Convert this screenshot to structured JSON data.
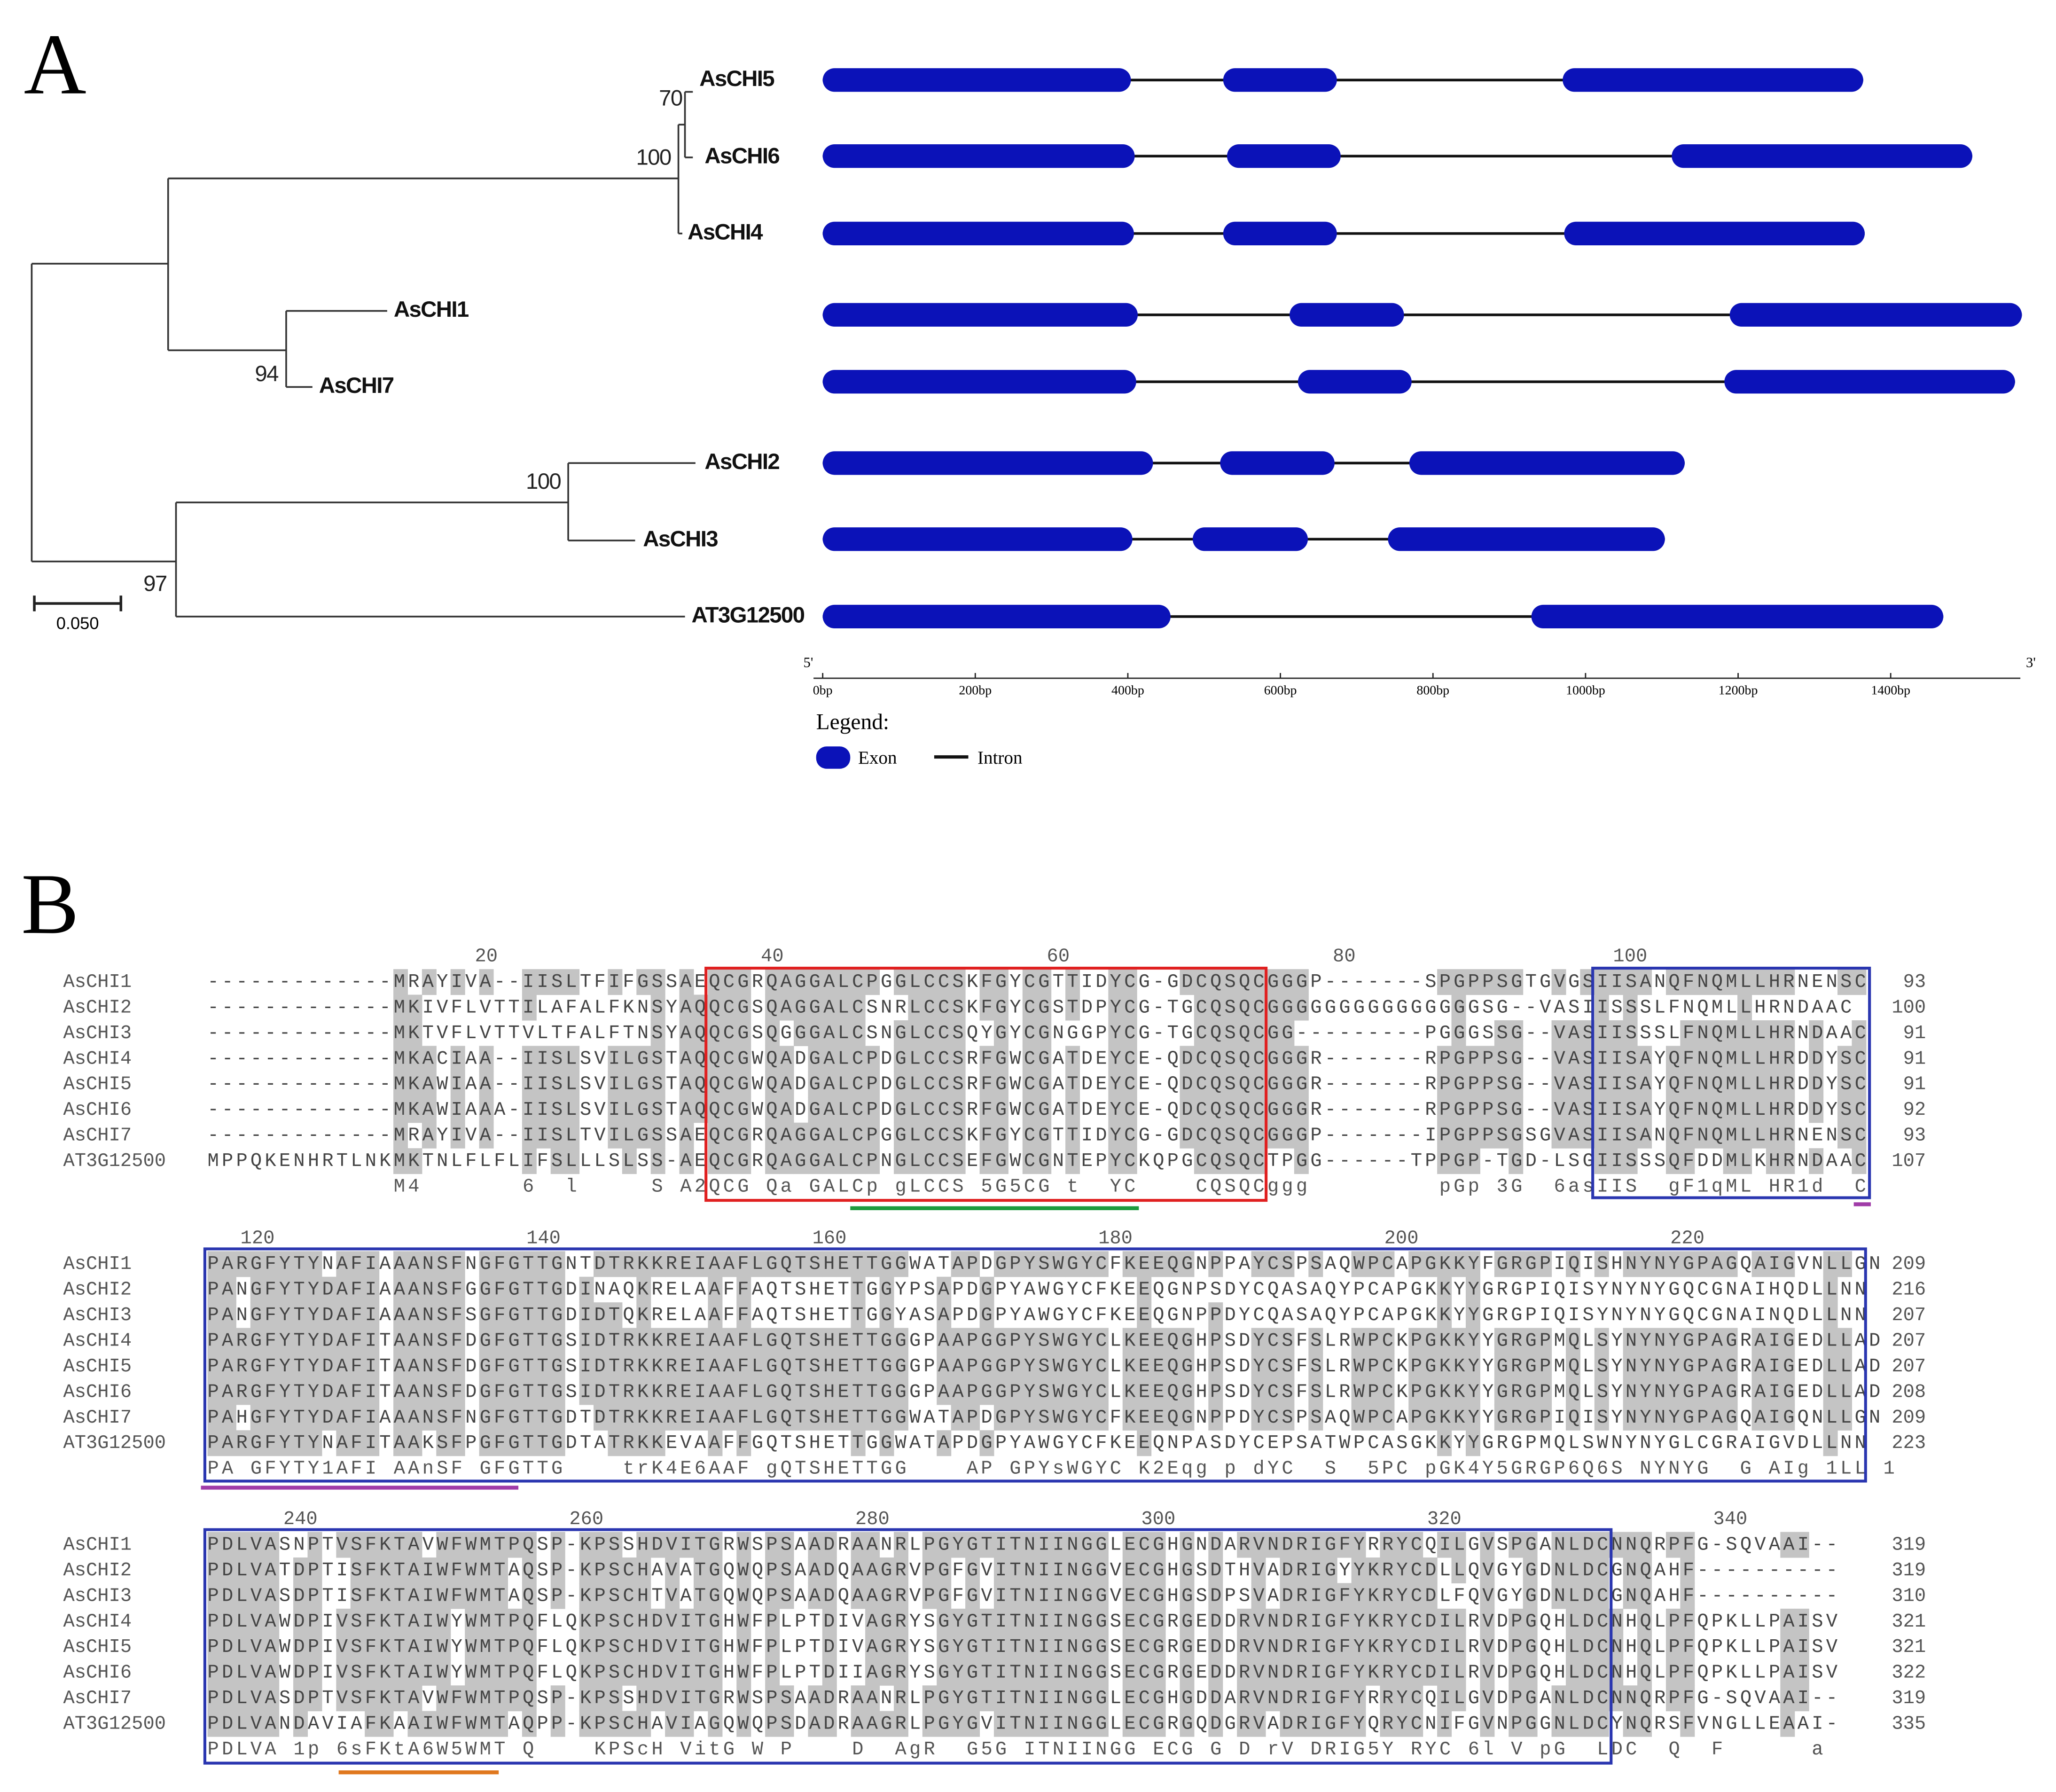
{
  "panelA": {
    "label": "A",
    "tree": {
      "leaves": [
        "AsCHI5",
        "AsCHI6",
        "AsCHI4",
        "AsCHI1",
        "AsCHI7",
        "AsCHI2",
        "AsCHI3",
        "AT3G12500"
      ],
      "bootstrap": [
        70,
        100,
        94,
        100,
        97
      ],
      "scale": "0.050"
    },
    "genes": {
      "type": "gene-structure",
      "color": "#0b12b8",
      "xlim": [
        0,
        1570
      ],
      "xticks": [
        {
          "value": 0,
          "label": "0bp"
        },
        {
          "value": 200,
          "label": "200bp"
        },
        {
          "value": 400,
          "label": "400bp"
        },
        {
          "value": 600,
          "label": "600bp"
        },
        {
          "value": 800,
          "label": "800bp"
        },
        {
          "value": 1000,
          "label": "1000bp"
        },
        {
          "value": 1200,
          "label": "1200bp"
        },
        {
          "value": 1400,
          "label": "1400bp"
        }
      ],
      "end5": "5'",
      "end3": "3'",
      "exons": [
        [
          [
            0,
            404
          ],
          [
            525,
            674
          ],
          [
            970,
            1364
          ]
        ],
        [
          [
            0,
            409
          ],
          [
            530,
            679
          ],
          [
            1113,
            1507
          ]
        ],
        [
          [
            0,
            408
          ],
          [
            525,
            674
          ],
          [
            972,
            1366
          ]
        ],
        [
          [
            0,
            413
          ],
          [
            612,
            762
          ],
          [
            1189,
            1572
          ]
        ],
        [
          [
            0,
            411
          ],
          [
            623,
            772
          ],
          [
            1182,
            1563
          ]
        ],
        [
          [
            0,
            433
          ],
          [
            521,
            671
          ],
          [
            769,
            1130
          ]
        ],
        [
          [
            0,
            406
          ],
          [
            485,
            636
          ],
          [
            741,
            1104
          ]
        ],
        [
          [
            0,
            456
          ],
          [
            929,
            1469
          ]
        ]
      ]
    },
    "legend": {
      "title": "Legend:",
      "exon": "Exon",
      "intron": "Intron"
    }
  },
  "panelB": {
    "label": "B",
    "blocks": [
      {
        "positions": [
          20,
          40,
          60,
          80,
          100
        ],
        "rows": [
          {
            "name": "AsCHI1",
            "seq": "-------------MRAYIVA--IISLTFIFGSSAEQCGRQAGGALCPGGLCCSKFGYCGTTIDYCG-GDCQSQCGGGP-------SPGPPSGTGVGSIISANQFNQMLLHRNENSC",
            "end": 93
          },
          {
            "name": "AsCHI2",
            "seq": "-------------MKIVFLVTTILAFALFKNSYAQQCGSQAGGALCSNRLCCSKFGYCGSTDPYCG-TGCQSQCGGGGGGGGGGGGGGGSG--VASIISSSLFNQMLLHRNDAAC",
            "end": 100
          },
          {
            "name": "AsCHI3",
            "seq": "-------------MKTVFLVTTVLTFALFTNSYAQQCGSQGGGALCSNGLCCSQYGYCGNGGPYCG-TGCQSQCGG---------PGGGSSG--VASIISSSLFNQMLLHRNDAAC",
            "end": 91
          },
          {
            "name": "AsCHI4",
            "seq": "-------------MKACIAA--IISLSVILGSTAQQCGWQADGALCPDGLCCSRFGWCGATDEYCE-QDCQSQCGGGR-------RPGPPSG--VASIISAYQFNQMLLHRDDYSC",
            "end": 91
          },
          {
            "name": "AsCHI5",
            "seq": "-------------MKAWIAA--IISLSVILGSTAQQCGWQADGALCPDGLCCSRFGWCGATDEYCE-QDCQSQCGGGR-------RPGPPSG--VASIISAYQFNQMLLHRDDYSC",
            "end": 91
          },
          {
            "name": "AsCHI6",
            "seq": "-------------MKAWIAAA-IISLSVILGSTAQQCGWQADGALCPDGLCCSRFGWCGATDEYCE-QDCQSQCGGGR-------RPGPPSG--VASIISAYQFNQMLLHRDDYSC",
            "end": 92
          },
          {
            "name": "AsCHI7",
            "seq": "-------------MRAYIVA--IISLTVILGSSAEQCGRQAGGALCPGGLCCSKFGYCGTTIDYCG-GDCQSQCGGGP-------IPGPPSGSGVASIISANQFNQMLLHRNENSC",
            "end": 93
          },
          {
            "name": "AT3G12500",
            "seq": "MPPQKENHRTLNKMKTNLFLFLIFSLLLSLSS-AEQCGRQAGGALCPNGLCCSEFGWCGNTEPYCKQPGCQSQCTPGG------TPPGP-TGD-LSGIISSSQFDDMLKHRNDAAC",
            "end": 107
          }
        ],
        "consensus": "             M4       6  l     S A2QCG Qa GALCp gLCCS 5G5CG t  YC    CQSQCggg         pGp 3G  6asIIS  gF1qML HR1d  C"
      },
      {
        "positions": [
          120,
          140,
          160,
          180,
          200,
          220
        ],
        "rows": [
          {
            "name": "AsCHI1",
            "seq": "PARGFYTYNAFIAAANSFNGFGTTGNTDTRKKREIAAFLGQTSHETTGGWATAPDGPYSWGYCFKEEQGNPPAYCSPSAQWPCAPGKKYFGRGPIQISHNYNYGPAGQAIGVNLLGN",
            "end": 209
          },
          {
            "name": "AsCHI2",
            "seq": "PANGFYTYDAFIAAANSFGGFGTTGDINAQKRELAAFFAQTSHETTGGYPSAPDGPYAWGYCFKEEQGNPSDYCQASAQYPCAPGKKYYGRGPIQISYNYNYGQCGNAIHQDLLNN",
            "end": 216
          },
          {
            "name": "AsCHI3",
            "seq": "PANGFYTYDAFIAAANSFSGFGTTGDIDTQKRELAAFFAQTSHETTGGYASAPDGPYAWGYCFKEEQGNPPDYCQASAQYPCAPGKKYYGRGPIQISYNYNYGQCGNAINQDLLNN",
            "end": 207
          },
          {
            "name": "AsCHI4",
            "seq": "PARGFYTYDAFITAANSFDGFGTTGSIDTRKKREIAAFLGQTSHETTGGGPAAPGGPYSWGYCLKEEQGHPSDYCSFSLRWPCKPGKKYYGRGPMQLSYNYNYGPAGRAIGEDLLAD",
            "end": 207
          },
          {
            "name": "AsCHI5",
            "seq": "PARGFYTYDAFITAANSFDGFGTTGSIDTRKKREIAAFLGQTSHETTGGGPAAPGGPYSWGYCLKEEQGHPSDYCSFSLRWPCKPGKKYYGRGPMQLSYNYNYGPAGRAIGEDLLAD",
            "end": 207
          },
          {
            "name": "AsCHI6",
            "seq": "PARGFYTYDAFITAANSFDGFGTTGSIDTRKKREIAAFLGQTSHETTGGGPAAPGGPYSWGYCLKEEQGHPSDYCSFSLRWPCKPGKKYYGRGPMQLSYNYNYGPAGRAIGEDLLAD",
            "end": 208
          },
          {
            "name": "AsCHI7",
            "seq": "PAHGFYTYDAFIAAANSFNGFGTTGDTDTRKKREIAAFLGQTSHETTGGWATAPDGPYSWGYCFKEEQGNPPDYCSPSAQWPCAPGKKYYGRGPIQISYNYNYGPAGQAIGQNLLGN",
            "end": 209
          },
          {
            "name": "AT3G12500",
            "seq": "PARGFYTYNAFITAAKSFPGFGTTGDTATRKKEVAAFFGQTSHETTGGWATAPDGPYAWGYCFKEEQNPASDYCEPSATWPCASGKKYYGRGPMQLSWNYNYGLCGRAIGVDLLNN",
            "end": 223
          }
        ],
        "consensus": "PA GFYTY1AFI AAnSF GFGTTG    trK4E6AAF gQTSHETTGG    AP GPYsWGYC K2Eqg p dYC  S  5PC pGK4Y5GRGP6Q6S NYNYG  G AIg 1LL 1"
      },
      {
        "positions": [
          240,
          260,
          280,
          300,
          320,
          340
        ],
        "rows": [
          {
            "name": "AsCHI1",
            "seq": "PDLVASNPTVSFKTAVWFWMTPQSP-KPSSHDVITGRWSPSAADRAANRLPGYGTITNIINGGLECGHGNDARVNDRIGFYRRYCQILGVSPGANLDCNNQRPFG-SQVAAI--",
            "end": 319
          },
          {
            "name": "AsCHI2",
            "seq": "PDLVATDPTISFKTAIWFWMTAQSP-KPSCHAVATGQWQPSAADQAAGRVPGFGVITNIINGGVECGHGSDTHVADRIGYYKRYCDLLQVGYGDNLDCGNQAHF----------",
            "end": 319
          },
          {
            "name": "AsCHI3",
            "seq": "PDLVASDPTISFKTAIWFWMTAQSP-KPSCHTVATGQWQPSAADQAAGRVPGFGVITNIINGGVECGHGSDPSVADRIGFYKRYCDLFQVGYGDNLDCGNQAHF----------",
            "end": 310
          },
          {
            "name": "AsCHI4",
            "seq": "PDLVAWDPIVSFKTAIWYWMTPQFLQKPSCHDVITGHWFPLPTDIVAGRYSGYGTITNIINGGSECGRGEDDRVNDRIGFYKRYCDILRVDPGQHLDCNHQLPFQPKLLPAISV",
            "end": 321
          },
          {
            "name": "AsCHI5",
            "seq": "PDLVAWDPIVSFKTAIWYWMTPQFLQKPSCHDVITGHWFPLPTDIVAGRYSGYGTITNIINGGSECGRGEDDRVNDRIGFYKRYCDILRVDPGQHLDCNHQLPFQPKLLPAISV",
            "end": 321
          },
          {
            "name": "AsCHI6",
            "seq": "PDLVAWDPIVSFKTAIWYWMTPQFLQKPSCHDVITGHWFPLPTDIIAGRYSGYGTITNIINGGSECGRGEDDRVNDRIGFYKRYCDILRVDPGQHLDCNHQLPFQPKLLPAISV",
            "end": 322
          },
          {
            "name": "AsCHI7",
            "seq": "PDLVASDPTVSFKTAVWFWMTPQSP-KPSSHDVITGRWSPSAADRAANRLPGYGTITNIINGGLECGHGDDARVNDRIGFYRRYCQILGVDPGANLDCNNQRPFG-SQVAAI--",
            "end": 319
          },
          {
            "name": "AT3G12500",
            "seq": "PDLVANDAVIAFKAAIWFWMTAQPP-KPSCHAVIAGQWQPSDADRAAGRLPGYGVITNIINGGLECGRGQDGRVADRIGFYQRYCNIFGVNPGGNLDCYNQRSFVNGLLEAAI-",
            "end": 335
          }
        ],
        "consensus": "PDLVA 1p 6sFKtA6W5WMT Q    KPScH VitG W P    D  AgR  G5G ITNIINGG ECG G D rV DRIG5Y RYC 6l V pG  LDC  Q  F      a"
      }
    ]
  }
}
